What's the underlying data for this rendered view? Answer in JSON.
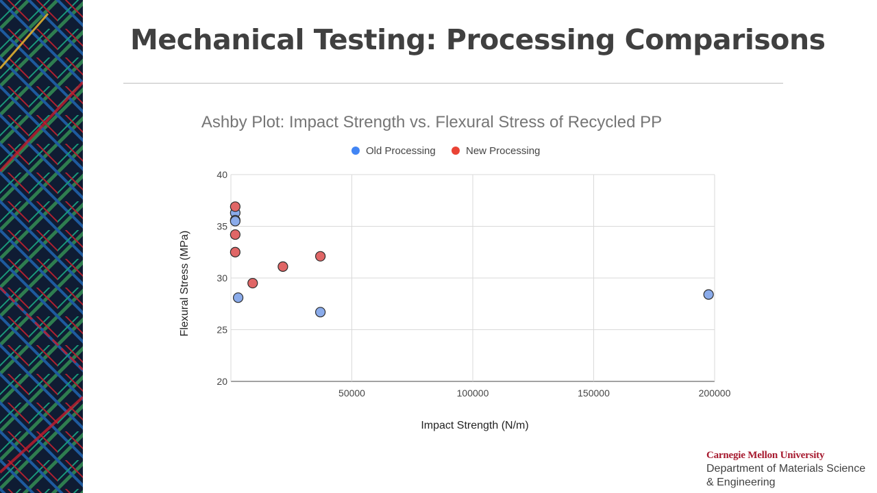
{
  "slide": {
    "title": "Mechanical Testing: Processing Comparisons"
  },
  "logo": {
    "university": "Carnegie Mellon University",
    "department_line1": "Department of Materials Science",
    "department_line2": "& Engineering",
    "brand_color": "#a6192e"
  },
  "chart_data": {
    "type": "scatter",
    "title": "Ashby Plot: Impact Strength vs. Flexural Stress of Recycled PP",
    "xlabel": "Impact Strength (N/m)",
    "ylabel": "Flexural Stress (MPa)",
    "xlim": [
      0,
      200000
    ],
    "ylim": [
      20,
      40
    ],
    "xticks": [
      50000,
      100000,
      150000,
      200000
    ],
    "yticks": [
      20,
      25,
      30,
      35,
      40
    ],
    "grid": true,
    "legend_position": "top",
    "series": [
      {
        "name": "Old Processing",
        "color": "#4285f4",
        "points": [
          {
            "x": 1800,
            "y": 36.3
          },
          {
            "x": 1800,
            "y": 35.6
          },
          {
            "x": 1800,
            "y": 35.5
          },
          {
            "x": 3000,
            "y": 28.1
          },
          {
            "x": 37000,
            "y": 26.7
          },
          {
            "x": 197500,
            "y": 28.4
          }
        ]
      },
      {
        "name": "New Processing",
        "color": "#ea4335",
        "points": [
          {
            "x": 1800,
            "y": 36.9
          },
          {
            "x": 1800,
            "y": 34.2
          },
          {
            "x": 1800,
            "y": 32.5
          },
          {
            "x": 9000,
            "y": 29.5
          },
          {
            "x": 21500,
            "y": 31.1
          },
          {
            "x": 37000,
            "y": 32.1
          }
        ]
      }
    ]
  }
}
